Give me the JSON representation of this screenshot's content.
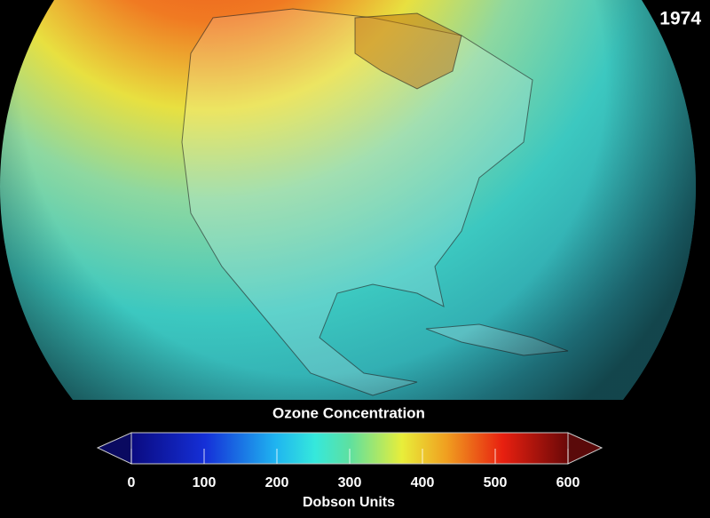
{
  "year": "1974",
  "colorbar": {
    "title": "Ozone Concentration",
    "range": [
      0,
      600
    ],
    "ticks": [
      0,
      100,
      200,
      300,
      400,
      500,
      600
    ],
    "label": "Dobson Units"
  }
}
